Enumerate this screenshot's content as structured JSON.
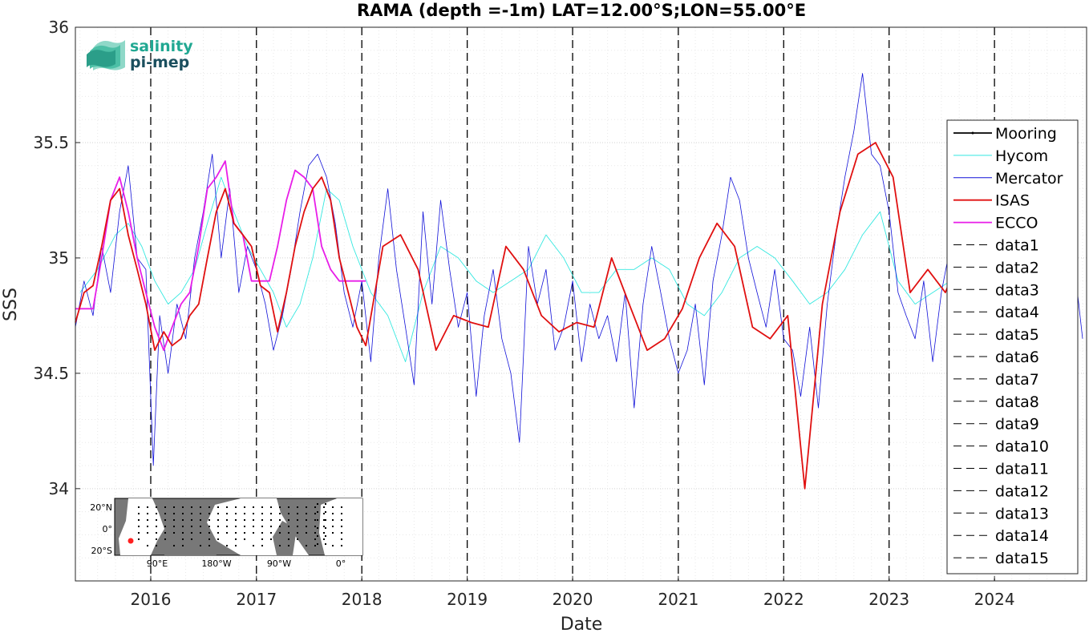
{
  "chart_data": {
    "type": "line",
    "title": "RAMA (depth =-1m) LAT=12.00°S;LON=55.00°E",
    "xlabel": "Date",
    "ylabel": "SSS",
    "xlim": [
      "2015-04-15",
      "2024-11-15"
    ],
    "ylim": [
      33.6,
      36.0
    ],
    "xticks": [
      "2016",
      "2017",
      "2018",
      "2019",
      "2020",
      "2021",
      "2022",
      "2023",
      "2024"
    ],
    "yticks": [
      "34",
      "34.5",
      "35",
      "35.5",
      "36"
    ],
    "grid": true,
    "legend_position": "right",
    "colors": {
      "Mooring": "#000000",
      "Hycom": "#33e8e0",
      "Mercator": "#1010d8",
      "ISAS": "#e01010",
      "ECCO": "#e81ee8",
      "dashed": "#000000"
    },
    "series": [
      {
        "name": "Mooring",
        "values": []
      },
      {
        "name": "Hycom",
        "x": [
          "2015-05-01",
          "2015-07-01",
          "2015-09-01",
          "2015-10-15",
          "2015-12-01",
          "2016-01-15",
          "2016-03-01",
          "2016-04-15",
          "2016-06-01",
          "2016-07-15",
          "2016-09-01",
          "2016-10-15",
          "2016-12-01",
          "2017-01-15",
          "2017-03-01",
          "2017-04-15",
          "2017-06-01",
          "2017-07-15",
          "2017-09-01",
          "2017-10-15",
          "2017-12-01",
          "2018-02-01",
          "2018-04-01",
          "2018-06-01",
          "2018-08-01",
          "2018-10-01",
          "2018-12-01",
          "2019-02-01",
          "2019-04-01",
          "2019-06-01",
          "2019-08-01",
          "2019-10-01",
          "2019-12-01",
          "2020-02-01",
          "2020-04-01",
          "2020-06-01",
          "2020-08-01",
          "2020-10-01",
          "2020-12-01",
          "2021-02-01",
          "2021-04-01",
          "2021-06-01",
          "2021-08-01",
          "2021-10-01",
          "2021-12-01",
          "2022-02-01",
          "2022-04-01",
          "2022-06-01",
          "2022-08-01",
          "2022-10-01",
          "2022-12-01",
          "2023-02-01",
          "2023-04-01",
          "2023-06-01",
          "2023-08-01"
        ],
        "values": [
          34.85,
          34.95,
          35.1,
          35.15,
          35.05,
          34.9,
          34.8,
          34.85,
          34.95,
          35.15,
          35.35,
          35.2,
          35.05,
          34.95,
          34.85,
          34.7,
          34.8,
          35.0,
          35.3,
          35.25,
          35.05,
          34.85,
          34.75,
          34.55,
          34.85,
          35.05,
          35.0,
          34.9,
          34.85,
          34.9,
          34.95,
          35.1,
          35.0,
          34.85,
          34.85,
          34.95,
          34.95,
          35.0,
          34.95,
          34.8,
          34.75,
          34.85,
          35.0,
          35.05,
          35.0,
          34.9,
          34.8,
          34.85,
          34.95,
          35.1,
          35.2,
          34.9,
          34.8,
          34.85,
          34.9
        ]
      },
      {
        "name": "Mercator",
        "x": [
          "2015-04-15",
          "2015-05-15",
          "2015-06-15",
          "2015-07-15",
          "2015-08-15",
          "2015-09-15",
          "2015-10-15",
          "2015-11-15",
          "2015-12-15",
          "2016-01-10",
          "2016-02-01",
          "2016-03-01",
          "2016-04-01",
          "2016-05-01",
          "2016-06-01",
          "2016-07-01",
          "2016-08-01",
          "2016-09-01",
          "2016-10-01",
          "2016-11-01",
          "2016-12-01",
          "2017-01-01",
          "2017-02-01",
          "2017-03-01",
          "2017-04-01",
          "2017-05-01",
          "2017-06-01",
          "2017-07-01",
          "2017-08-01",
          "2017-09-01",
          "2017-10-01",
          "2017-11-01",
          "2017-12-01",
          "2018-01-01",
          "2018-02-01",
          "2018-03-01",
          "2018-04-01",
          "2018-05-01",
          "2018-06-01",
          "2018-07-01",
          "2018-08-01",
          "2018-09-01",
          "2018-10-01",
          "2018-11-01",
          "2018-12-01",
          "2019-01-01",
          "2019-02-01",
          "2019-03-01",
          "2019-04-01",
          "2019-05-01",
          "2019-06-01",
          "2019-07-01",
          "2019-08-01",
          "2019-09-01",
          "2019-10-01",
          "2019-11-01",
          "2019-12-01",
          "2020-01-01",
          "2020-02-01",
          "2020-03-01",
          "2020-04-01",
          "2020-05-01",
          "2020-06-01",
          "2020-07-01",
          "2020-08-01",
          "2020-09-01",
          "2020-10-01",
          "2020-11-01",
          "2020-12-01",
          "2021-01-01",
          "2021-02-01",
          "2021-03-01",
          "2021-04-01",
          "2021-05-01",
          "2021-06-01",
          "2021-07-01",
          "2021-08-01",
          "2021-09-01",
          "2021-10-01",
          "2021-11-01",
          "2021-12-01",
          "2022-01-01",
          "2022-02-01",
          "2022-03-01",
          "2022-04-01",
          "2022-05-01",
          "2022-06-01",
          "2022-07-01",
          "2022-08-01",
          "2022-09-01",
          "2022-10-01",
          "2022-11-01",
          "2022-12-01",
          "2023-01-01",
          "2023-02-01",
          "2023-03-01",
          "2023-04-01",
          "2023-05-01",
          "2023-06-01",
          "2023-07-01",
          "2023-08-01",
          "2023-09-01",
          "2023-10-01",
          "2023-11-01",
          "2023-12-01",
          "2024-01-01",
          "2024-02-01",
          "2024-03-01",
          "2024-04-01",
          "2024-05-01",
          "2024-06-01",
          "2024-07-01",
          "2024-08-01",
          "2024-09-01",
          "2024-10-01",
          "2024-11-01"
        ],
        "values": [
          34.7,
          34.9,
          34.75,
          35.05,
          34.85,
          35.2,
          35.4,
          35.0,
          34.95,
          34.1,
          34.75,
          34.5,
          34.8,
          34.65,
          35.0,
          35.2,
          35.45,
          35.0,
          35.3,
          34.85,
          35.05,
          34.95,
          34.8,
          34.6,
          34.75,
          34.95,
          35.2,
          35.4,
          35.45,
          35.35,
          35.15,
          34.85,
          34.7,
          34.9,
          34.55,
          35.0,
          35.3,
          34.95,
          34.7,
          34.45,
          35.2,
          34.8,
          35.25,
          34.95,
          34.7,
          34.85,
          34.4,
          34.75,
          34.95,
          34.65,
          34.5,
          34.2,
          35.05,
          34.8,
          34.95,
          34.6,
          34.7,
          34.9,
          34.55,
          34.8,
          34.65,
          34.75,
          34.55,
          34.85,
          34.35,
          34.8,
          35.05,
          34.85,
          34.65,
          34.5,
          34.6,
          34.8,
          34.45,
          34.9,
          35.1,
          35.35,
          35.25,
          35.0,
          34.85,
          34.7,
          34.95,
          34.65,
          34.6,
          34.4,
          34.7,
          34.35,
          34.8,
          35.1,
          35.35,
          35.55,
          35.8,
          35.45,
          35.4,
          35.2,
          34.85,
          34.75,
          34.65,
          34.9,
          34.55,
          34.85,
          35.05,
          35.35,
          35.2,
          34.95,
          34.7,
          35.0,
          35.1,
          34.9,
          35.2,
          35.0,
          34.85,
          35.05,
          34.8,
          34.95,
          35.0,
          34.65
        ]
      },
      {
        "name": "ISAS",
        "x": [
          "2015-04-15",
          "2015-05-15",
          "2015-06-15",
          "2015-07-15",
          "2015-08-15",
          "2015-09-15",
          "2015-10-15",
          "2015-11-15",
          "2015-12-15",
          "2016-01-15",
          "2016-02-15",
          "2016-03-15",
          "2016-04-15",
          "2016-05-15",
          "2016-06-15",
          "2016-07-15",
          "2016-08-15",
          "2016-09-15",
          "2016-10-15",
          "2016-11-15",
          "2016-12-15",
          "2017-01-15",
          "2017-02-15",
          "2017-03-15",
          "2017-04-15",
          "2017-05-15",
          "2017-06-15",
          "2017-07-15",
          "2017-08-15",
          "2017-09-15",
          "2017-10-15",
          "2017-11-15",
          "2017-12-15",
          "2018-01-15",
          "2018-03-15",
          "2018-05-15",
          "2018-07-15",
          "2018-09-15",
          "2018-11-15",
          "2019-01-15",
          "2019-03-15",
          "2019-05-15",
          "2019-07-15",
          "2019-09-15",
          "2019-11-15",
          "2020-01-15",
          "2020-03-15",
          "2020-05-15",
          "2020-07-15",
          "2020-09-15",
          "2020-11-15",
          "2021-01-15",
          "2021-03-15",
          "2021-05-15",
          "2021-07-15",
          "2021-09-15",
          "2021-11-15",
          "2022-01-15",
          "2022-03-15",
          "2022-05-15",
          "2022-07-15",
          "2022-09-15",
          "2022-11-15",
          "2023-01-15",
          "2023-03-15",
          "2023-05-15",
          "2023-07-15",
          "2023-09-15"
        ],
        "values": [
          34.72,
          34.85,
          34.88,
          35.05,
          35.25,
          35.3,
          35.1,
          34.95,
          34.8,
          34.6,
          34.68,
          34.62,
          34.65,
          34.75,
          34.8,
          35.0,
          35.2,
          35.3,
          35.15,
          35.1,
          35.05,
          34.88,
          34.85,
          34.68,
          34.85,
          35.05,
          35.2,
          35.3,
          35.35,
          35.25,
          35.0,
          34.85,
          34.7,
          34.62,
          35.05,
          35.1,
          34.95,
          34.6,
          34.75,
          34.72,
          34.7,
          35.05,
          34.95,
          34.75,
          34.68,
          34.72,
          34.7,
          35.0,
          34.8,
          34.6,
          34.65,
          34.78,
          35.0,
          35.15,
          35.05,
          34.7,
          34.65,
          34.75,
          34.0,
          34.8,
          35.2,
          35.45,
          35.5,
          35.35,
          34.85,
          34.95,
          34.85,
          35.05
        ]
      },
      {
        "name": "ECCO",
        "x": [
          "2015-04-15",
          "2015-06-15",
          "2015-07-15",
          "2015-08-15",
          "2015-09-15",
          "2015-10-15",
          "2015-11-15",
          "2015-12-15",
          "2016-01-15",
          "2016-02-15",
          "2016-03-15",
          "2016-04-15",
          "2016-05-15",
          "2016-06-15",
          "2016-07-15",
          "2016-08-15",
          "2016-09-15",
          "2016-10-15",
          "2016-11-15",
          "2016-12-15",
          "2017-01-15",
          "2017-02-15",
          "2017-03-15",
          "2017-04-15",
          "2017-05-15",
          "2017-06-15",
          "2017-07-15",
          "2017-08-15",
          "2017-09-15",
          "2017-10-15",
          "2017-11-15",
          "2017-12-15",
          "2018-01-15"
        ],
        "values": [
          34.78,
          34.78,
          35.0,
          35.25,
          35.35,
          35.2,
          35.0,
          34.85,
          34.7,
          34.6,
          34.7,
          34.8,
          34.85,
          35.05,
          35.3,
          35.35,
          35.42,
          35.15,
          35.1,
          34.9,
          34.9,
          34.9,
          35.05,
          35.25,
          35.38,
          35.35,
          35.3,
          35.05,
          34.95,
          34.9,
          34.9,
          34.9,
          34.9
        ]
      },
      {
        "name": "data1",
        "values": []
      },
      {
        "name": "data2",
        "values": []
      },
      {
        "name": "data3",
        "values": []
      },
      {
        "name": "data4",
        "values": []
      },
      {
        "name": "data5",
        "values": []
      },
      {
        "name": "data6",
        "values": []
      },
      {
        "name": "data7",
        "values": []
      },
      {
        "name": "data8",
        "values": []
      },
      {
        "name": "data9",
        "values": []
      },
      {
        "name": "data10",
        "values": []
      },
      {
        "name": "data11",
        "values": []
      },
      {
        "name": "data12",
        "values": []
      },
      {
        "name": "data13",
        "values": []
      },
      {
        "name": "data14",
        "values": []
      },
      {
        "name": "data15",
        "values": []
      }
    ],
    "vlines": [
      "2016-01-01",
      "2017-01-01",
      "2018-01-01",
      "2019-01-01",
      "2020-01-01",
      "2021-01-01",
      "2022-01-01",
      "2023-01-01",
      "2024-01-01"
    ]
  },
  "logo": {
    "line1": "salinity",
    "line2": "pi-mep"
  },
  "inset_map": {
    "lat_labels": [
      "20°N",
      "0°",
      "20°S"
    ],
    "lon_labels": [
      "90°E",
      "180°W",
      "90°W",
      "0°"
    ]
  }
}
